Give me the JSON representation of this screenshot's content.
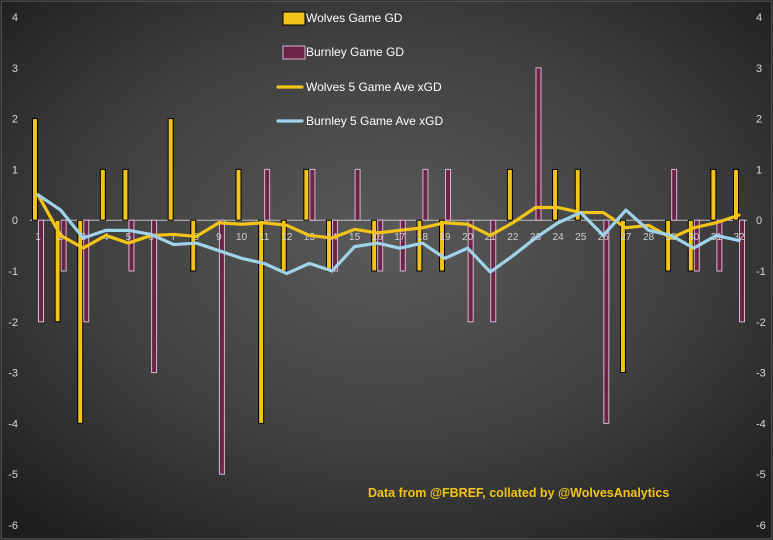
{
  "chart_data": {
    "type": "bar",
    "categories": [
      "1",
      "2",
      "3",
      "4",
      "5",
      "6",
      "7",
      "8",
      "9",
      "10",
      "11",
      "12",
      "13",
      "14",
      "15",
      "16",
      "17",
      "18",
      "19",
      "20",
      "21",
      "22",
      "23",
      "24",
      "25",
      "26",
      "27",
      "28",
      "29",
      "30",
      "31",
      "32"
    ],
    "series": [
      {
        "name": "Wolves Game GD",
        "kind": "bar",
        "color": "#f2c318",
        "values": [
          2,
          -2,
          -4,
          1,
          1,
          0,
          2,
          -1,
          0,
          1,
          -4,
          -1,
          1,
          -1,
          0,
          -1,
          0,
          -1,
          -1,
          0,
          0,
          1,
          0,
          1,
          1,
          0,
          -3,
          0,
          -1,
          -1,
          1,
          1
        ]
      },
      {
        "name": "Burnley Game GD",
        "kind": "bar",
        "color": "#6b2448",
        "values": [
          -2,
          -1,
          -2,
          0,
          -1,
          -3,
          0,
          0,
          -5,
          0,
          1,
          0,
          1,
          -1,
          1,
          -1,
          -1,
          1,
          1,
          -2,
          -2,
          0,
          3,
          0,
          0,
          -4,
          0,
          0,
          1,
          -1,
          -1,
          -2
        ]
      },
      {
        "name": "Wolves 5 Game Ave xGD",
        "kind": "line",
        "color": "#f2c318",
        "values": [
          0.5,
          -0.3,
          -0.55,
          -0.3,
          -0.45,
          -0.3,
          -0.28,
          -0.32,
          -0.05,
          -0.08,
          -0.05,
          -0.1,
          -0.3,
          -0.35,
          -0.18,
          -0.25,
          -0.2,
          -0.15,
          -0.05,
          -0.08,
          -0.3,
          -0.05,
          0.25,
          0.25,
          0.15,
          0.15,
          -0.15,
          -0.1,
          -0.35,
          -0.15,
          -0.05,
          0.1
        ]
      },
      {
        "name": "Burnley 5 Game Ave xGD",
        "kind": "line",
        "color": "#9fd3ea",
        "values": [
          0.5,
          0.2,
          -0.35,
          -0.2,
          -0.2,
          -0.28,
          -0.48,
          -0.45,
          -0.6,
          -0.75,
          -0.85,
          -1.05,
          -0.85,
          -1.0,
          -0.52,
          -0.45,
          -0.55,
          -0.45,
          -0.75,
          -0.55,
          -1.02,
          -0.7,
          -0.35,
          -0.05,
          0.15,
          -0.3,
          0.2,
          -0.2,
          -0.3,
          -0.55,
          -0.3,
          -0.4
        ]
      }
    ],
    "ylim": [
      -6,
      4
    ],
    "yticks": [
      "4",
      "3",
      "2",
      "1",
      "0",
      "-1",
      "-2",
      "-3",
      "-4",
      "-5",
      "-6"
    ],
    "grid": false,
    "legend": "top-center",
    "annotation": "Data from @FBREF, collated by @WolvesAnalytics",
    "colors": {
      "background_center": "#5a5a5a",
      "background_edge": "#1e1e1e",
      "axis_text": "#d8d8d8"
    }
  }
}
